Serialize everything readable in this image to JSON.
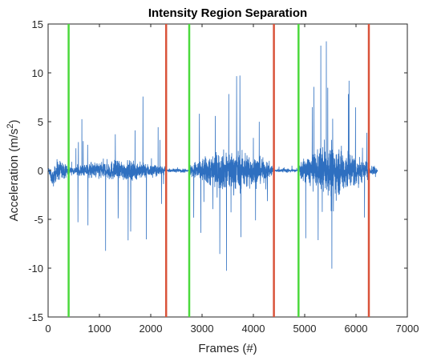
{
  "chart_data": {
    "type": "line",
    "title": "Intensity Region Separation",
    "xlabel": "Frames (#)",
    "ylabel_main": "Acceleration (m/s",
    "ylabel_sup": "2",
    "ylabel_close": ")",
    "xlim": [
      0,
      7000
    ],
    "ylim": [
      -15,
      15
    ],
    "x_ticks": [
      0,
      1000,
      2000,
      3000,
      4000,
      5000,
      6000,
      7000
    ],
    "x_tick_labels": [
      "0",
      "1000",
      "2000",
      "3000",
      "4000",
      "5000",
      "6000",
      "7000"
    ],
    "y_ticks": [
      15,
      10,
      5,
      0,
      -5,
      -10,
      -15
    ],
    "y_tick_labels": [
      "15",
      "10",
      "5",
      "0",
      "-5",
      "-10",
      "-15"
    ],
    "grid": false,
    "series": [
      {
        "color": "#2e6fc0",
        "x_end": 6420,
        "segments": [
          {
            "x": [
              0,
              400
            ],
            "amp": 0.5,
            "peak": 1.0
          },
          {
            "x": [
              400,
              2300
            ],
            "amp": 0.5,
            "peak": 10.8
          },
          {
            "x": [
              2300,
              2750
            ],
            "amp": 0.1,
            "peak": 0.4
          },
          {
            "x": [
              2750,
              4400
            ],
            "amp": 1.0,
            "peak": 12.0
          },
          {
            "x": [
              4400,
              4880
            ],
            "amp": 0.1,
            "peak": 0.6
          },
          {
            "x": [
              4880,
              6250
            ],
            "amp": 1.2,
            "peak": 14.5
          },
          {
            "x": [
              6250,
              6420
            ],
            "amp": 0.3,
            "peak": 1.5
          }
        ]
      }
    ],
    "green_lines": {
      "color": "#4cd93d",
      "x": [
        400,
        2750,
        4880
      ]
    },
    "red_lines": {
      "color": "#d9533a",
      "x": [
        2300,
        4400,
        6250
      ]
    }
  }
}
